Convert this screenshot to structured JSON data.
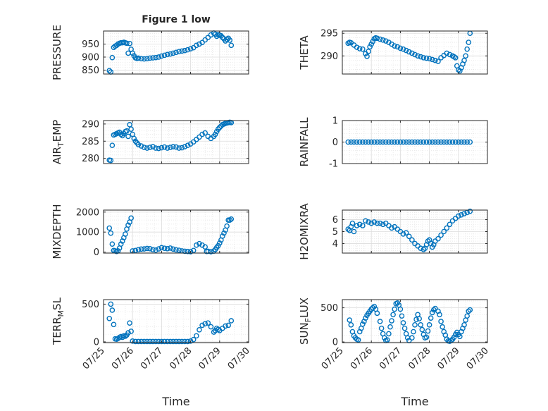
{
  "figure": {
    "title": "Figure 1 low"
  },
  "chart_data": [
    {
      "type": "scatter",
      "title": "Figure 1 low",
      "ylabel": "PRESSURE",
      "ylim": [
        835,
        1000
      ],
      "yticks": [
        850,
        900,
        950
      ],
      "xlim": [
        0,
        5
      ],
      "grid": true,
      "color": "#0072bd",
      "x": [
        0.2,
        0.25,
        0.3,
        0.35,
        0.4,
        0.45,
        0.5,
        0.55,
        0.6,
        0.65,
        0.7,
        0.75,
        0.8,
        0.85,
        0.9,
        0.95,
        1.0,
        1.05,
        1.1,
        1.15,
        1.2,
        1.3,
        1.4,
        1.5,
        1.6,
        1.7,
        1.8,
        1.9,
        2.0,
        2.1,
        2.2,
        2.3,
        2.4,
        2.5,
        2.6,
        2.7,
        2.8,
        2.9,
        3.0,
        3.1,
        3.2,
        3.3,
        3.4,
        3.5,
        3.6,
        3.7,
        3.8,
        3.85,
        3.9,
        3.95,
        4.0,
        4.05,
        4.1,
        4.15,
        4.2,
        4.25,
        4.3,
        4.35,
        4.4
      ],
      "values": [
        848,
        843,
        898,
        937,
        942,
        945,
        950,
        953,
        955,
        955,
        957,
        955,
        953,
        915,
        952,
        930,
        915,
        905,
        897,
        895,
        896,
        894,
        893,
        894,
        896,
        897,
        898,
        900,
        904,
        907,
        910,
        912,
        915,
        918,
        921,
        923,
        925,
        928,
        932,
        936,
        945,
        950,
        956,
        966,
        975,
        985,
        992,
        988,
        980,
        986,
        984,
        982,
        975,
        970,
        962,
        968,
        972,
        965,
        945
      ]
    },
    {
      "type": "scatter",
      "ylabel": "THETA",
      "ylim": [
        286,
        295.5
      ],
      "yticks": [
        290,
        295
      ],
      "xlim": [
        0,
        5
      ],
      "grid": true,
      "color": "#0072bd",
      "x": [
        0.2,
        0.25,
        0.3,
        0.4,
        0.5,
        0.6,
        0.7,
        0.8,
        0.85,
        0.9,
        0.95,
        1.0,
        1.05,
        1.1,
        1.15,
        1.2,
        1.3,
        1.4,
        1.5,
        1.6,
        1.7,
        1.8,
        1.9,
        2.0,
        2.1,
        2.2,
        2.3,
        2.4,
        2.5,
        2.6,
        2.7,
        2.8,
        2.9,
        3.0,
        3.1,
        3.2,
        3.3,
        3.4,
        3.5,
        3.6,
        3.7,
        3.8,
        3.85,
        3.9,
        3.95,
        4.0,
        4.05,
        4.1,
        4.15,
        4.2,
        4.25,
        4.3,
        4.35,
        4.4
      ],
      "values": [
        292.8,
        293.0,
        292.9,
        292.4,
        291.9,
        291.6,
        291.5,
        290.5,
        289.9,
        291.0,
        292.0,
        292.6,
        293.2,
        293.8,
        294.0,
        293.9,
        293.7,
        293.5,
        293.3,
        293.0,
        292.6,
        292.2,
        292.0,
        291.7,
        291.5,
        291.2,
        290.9,
        290.6,
        290.3,
        290.0,
        289.8,
        289.6,
        289.5,
        289.4,
        289.2,
        289.0,
        288.8,
        289.6,
        290.1,
        290.6,
        290.3,
        290.0,
        289.8,
        289.6,
        287.8,
        286.9,
        286.7,
        287.4,
        288.2,
        289.0,
        290.0,
        291.5,
        293.0,
        295.0
      ]
    },
    {
      "type": "scatter",
      "ylabel": "AIR_TEMP",
      "ylim": [
        278.5,
        291
      ],
      "yticks": [
        280,
        285,
        290
      ],
      "xlim": [
        0,
        5
      ],
      "grid": true,
      "color": "#0072bd",
      "x": [
        0.2,
        0.25,
        0.3,
        0.35,
        0.4,
        0.45,
        0.5,
        0.55,
        0.6,
        0.65,
        0.7,
        0.75,
        0.8,
        0.85,
        0.9,
        0.95,
        1.0,
        1.05,
        1.1,
        1.15,
        1.2,
        1.3,
        1.4,
        1.5,
        1.6,
        1.7,
        1.8,
        1.9,
        2.0,
        2.1,
        2.2,
        2.3,
        2.4,
        2.5,
        2.6,
        2.7,
        2.8,
        2.9,
        3.0,
        3.1,
        3.2,
        3.3,
        3.4,
        3.5,
        3.6,
        3.7,
        3.8,
        3.85,
        3.9,
        3.95,
        4.0,
        4.05,
        4.1,
        4.15,
        4.2,
        4.25,
        4.3,
        4.35,
        4.4
      ],
      "values": [
        279.5,
        279.4,
        283.8,
        286.8,
        287.0,
        287.2,
        287.4,
        287.6,
        287.0,
        286.6,
        287.2,
        287.8,
        288.0,
        286.4,
        289.8,
        288.5,
        287.0,
        285.8,
        285.0,
        284.5,
        284.0,
        283.6,
        283.2,
        283.0,
        283.2,
        283.4,
        283.0,
        282.9,
        283.1,
        283.3,
        283.0,
        283.2,
        283.4,
        283.3,
        283.0,
        283.1,
        283.4,
        283.8,
        284.2,
        284.8,
        285.5,
        286.2,
        287.0,
        287.4,
        286.4,
        285.8,
        286.4,
        287.0,
        287.8,
        288.5,
        289.0,
        289.4,
        289.8,
        290.0,
        290.2,
        290.3,
        290.4,
        290.5,
        290.4
      ]
    },
    {
      "type": "scatter",
      "ylabel": "RAINFALL",
      "ylim": [
        -1,
        1
      ],
      "yticks": [
        -1,
        0,
        1
      ],
      "xlim": [
        0,
        5
      ],
      "grid": true,
      "color": "#0072bd",
      "x": [
        0.2,
        0.3,
        0.4,
        0.5,
        0.6,
        0.7,
        0.8,
        0.9,
        1.0,
        1.1,
        1.2,
        1.3,
        1.4,
        1.5,
        1.6,
        1.7,
        1.8,
        1.9,
        2.0,
        2.1,
        2.2,
        2.3,
        2.4,
        2.5,
        2.6,
        2.7,
        2.8,
        2.9,
        3.0,
        3.1,
        3.2,
        3.3,
        3.4,
        3.5,
        3.6,
        3.7,
        3.8,
        3.9,
        4.0,
        4.1,
        4.2,
        4.3,
        4.4
      ],
      "values": [
        0,
        0,
        0,
        0,
        0,
        0,
        0,
        0,
        0,
        0,
        0,
        0,
        0,
        0,
        0,
        0,
        0,
        0,
        0,
        0,
        0,
        0,
        0,
        0,
        0,
        0,
        0,
        0,
        0,
        0,
        0,
        0,
        0,
        0,
        0,
        0,
        0,
        0,
        0,
        0,
        0,
        0,
        0
      ]
    },
    {
      "type": "scatter",
      "ylabel": "MIXDEPTH",
      "ylim": [
        -50,
        2100
      ],
      "yticks": [
        0,
        1000,
        2000
      ],
      "xlim": [
        0,
        5
      ],
      "grid": true,
      "color": "#0072bd",
      "x": [
        0.2,
        0.25,
        0.3,
        0.35,
        0.4,
        0.45,
        0.5,
        0.55,
        0.6,
        0.65,
        0.7,
        0.75,
        0.8,
        0.85,
        0.9,
        0.95,
        1.0,
        1.1,
        1.2,
        1.3,
        1.4,
        1.5,
        1.6,
        1.7,
        1.8,
        1.9,
        2.0,
        2.1,
        2.2,
        2.3,
        2.4,
        2.5,
        2.6,
        2.7,
        2.8,
        2.9,
        3.0,
        3.1,
        3.2,
        3.3,
        3.4,
        3.5,
        3.55,
        3.6,
        3.7,
        3.8,
        3.85,
        3.9,
        3.95,
        4.0,
        4.05,
        4.1,
        4.15,
        4.2,
        4.25,
        4.3,
        4.35,
        4.4
      ],
      "values": [
        1200,
        950,
        400,
        80,
        60,
        30,
        60,
        200,
        400,
        550,
        720,
        900,
        1150,
        1350,
        1500,
        1700,
        60,
        80,
        120,
        150,
        160,
        180,
        170,
        120,
        100,
        160,
        220,
        190,
        170,
        200,
        150,
        110,
        90,
        60,
        40,
        30,
        20,
        80,
        350,
        420,
        350,
        260,
        30,
        40,
        20,
        50,
        130,
        230,
        320,
        450,
        600,
        800,
        950,
        1100,
        1300,
        1600,
        1600,
        1650
      ]
    },
    {
      "type": "scatter",
      "ylabel": "H2OMIXRA",
      "ylim": [
        3.2,
        6.8
      ],
      "yticks": [
        4,
        5,
        6
      ],
      "xlim": [
        0,
        5
      ],
      "grid": true,
      "color": "#0072bd",
      "x": [
        0.2,
        0.25,
        0.3,
        0.35,
        0.4,
        0.5,
        0.6,
        0.7,
        0.8,
        0.9,
        1.0,
        1.1,
        1.2,
        1.3,
        1.4,
        1.5,
        1.6,
        1.7,
        1.8,
        1.9,
        2.0,
        2.1,
        2.2,
        2.3,
        2.4,
        2.5,
        2.6,
        2.7,
        2.8,
        2.85,
        2.9,
        2.95,
        3.0,
        3.05,
        3.1,
        3.15,
        3.2,
        3.3,
        3.4,
        3.5,
        3.6,
        3.7,
        3.8,
        3.9,
        4.0,
        4.1,
        4.2,
        4.3,
        4.4
      ],
      "values": [
        5.2,
        5.1,
        5.4,
        5.7,
        5.0,
        5.5,
        5.6,
        5.5,
        5.9,
        5.8,
        5.7,
        5.8,
        5.7,
        5.7,
        5.6,
        5.7,
        5.5,
        5.3,
        5.4,
        5.2,
        5.0,
        4.8,
        4.9,
        4.6,
        4.3,
        4.0,
        3.8,
        3.6,
        3.5,
        3.6,
        3.9,
        4.2,
        4.3,
        4.0,
        3.7,
        3.9,
        4.2,
        4.4,
        4.7,
        5.0,
        5.3,
        5.6,
        5.9,
        6.1,
        6.3,
        6.4,
        6.5,
        6.6,
        6.7
      ]
    },
    {
      "type": "scatter",
      "ylabel": "TERR_MSL",
      "ylim": [
        -10,
        560
      ],
      "yticks": [
        0,
        500
      ],
      "xticklabels": [
        "07/25",
        "07/26",
        "07/27",
        "07/28",
        "07/29",
        "07/30"
      ],
      "xlabel": "Time",
      "xlim": [
        0,
        5
      ],
      "grid": true,
      "color": "#0072bd",
      "x": [
        0.2,
        0.25,
        0.3,
        0.35,
        0.4,
        0.45,
        0.5,
        0.55,
        0.6,
        0.65,
        0.7,
        0.75,
        0.8,
        0.85,
        0.9,
        0.95,
        1.0,
        1.1,
        1.2,
        1.3,
        1.4,
        1.5,
        1.6,
        1.7,
        1.8,
        1.9,
        2.0,
        2.1,
        2.2,
        2.3,
        2.4,
        2.5,
        2.6,
        2.7,
        2.8,
        2.9,
        3.0,
        3.1,
        3.2,
        3.3,
        3.4,
        3.5,
        3.6,
        3.7,
        3.8,
        3.85,
        3.9,
        3.95,
        4.0,
        4.1,
        4.2,
        4.3,
        4.4
      ],
      "values": [
        310,
        500,
        420,
        230,
        40,
        35,
        45,
        60,
        70,
        60,
        80,
        75,
        90,
        120,
        250,
        140,
        10,
        5,
        5,
        5,
        5,
        5,
        5,
        5,
        5,
        5,
        5,
        5,
        5,
        5,
        5,
        5,
        5,
        5,
        5,
        5,
        10,
        30,
        80,
        160,
        220,
        240,
        250,
        200,
        130,
        150,
        180,
        165,
        150,
        180,
        210,
        220,
        280
      ]
    },
    {
      "type": "scatter",
      "ylabel": "SUN_FLUX",
      "ylim": [
        -10,
        620
      ],
      "yticks": [
        0,
        500
      ],
      "xticklabels": [
        "07/25",
        "07/26",
        "07/27",
        "07/28",
        "07/29",
        "07/30"
      ],
      "xlabel": "Time",
      "xlim": [
        0,
        5
      ],
      "grid": true,
      "color": "#0072bd",
      "x": [
        0.25,
        0.3,
        0.35,
        0.4,
        0.45,
        0.5,
        0.55,
        0.6,
        0.65,
        0.7,
        0.75,
        0.8,
        0.85,
        0.9,
        0.95,
        1.0,
        1.05,
        1.1,
        1.15,
        1.2,
        1.3,
        1.35,
        1.4,
        1.45,
        1.5,
        1.55,
        1.6,
        1.65,
        1.7,
        1.75,
        1.8,
        1.85,
        1.9,
        1.95,
        2.0,
        2.05,
        2.1,
        2.15,
        2.2,
        2.25,
        2.3,
        2.4,
        2.45,
        2.5,
        2.55,
        2.6,
        2.65,
        2.7,
        2.75,
        2.8,
        2.85,
        2.9,
        2.95,
        3.0,
        3.05,
        3.1,
        3.15,
        3.2,
        3.3,
        3.35,
        3.4,
        3.45,
        3.5,
        3.55,
        3.6,
        3.65,
        3.7,
        3.75,
        3.8,
        3.85,
        3.9,
        3.95,
        4.0,
        4.05,
        4.1,
        4.15,
        4.2,
        4.25,
        4.3,
        4.35,
        4.4
      ],
      "values": [
        320,
        250,
        150,
        90,
        60,
        40,
        30,
        150,
        200,
        260,
        300,
        350,
        390,
        420,
        450,
        480,
        500,
        520,
        480,
        420,
        300,
        200,
        120,
        60,
        20,
        30,
        120,
        220,
        310,
        400,
        480,
        560,
        570,
        540,
        480,
        380,
        280,
        200,
        120,
        60,
        20,
        60,
        150,
        250,
        330,
        400,
        340,
        250,
        180,
        110,
        60,
        70,
        160,
        250,
        350,
        430,
        470,
        490,
        450,
        400,
        300,
        220,
        150,
        100,
        40,
        15,
        10,
        20,
        40,
        70,
        110,
        140,
        110,
        80,
        150,
        200,
        250,
        320,
        380,
        450,
        470
      ]
    }
  ]
}
